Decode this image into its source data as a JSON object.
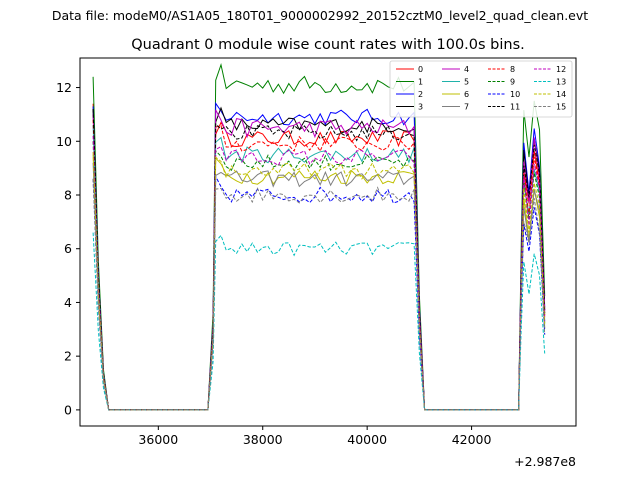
{
  "chart_data": {
    "type": "line",
    "suptitle": "Data file: modeM0/AS1A05_180T01_9000002992_20152cztM0_level2_quad_clean.evt",
    "title": "Quadrant 0 module wise count rates with 100.0s bins.",
    "xlabel": "",
    "ylabel": "",
    "x_offset_label": "+2.987e8",
    "xlim": [
      34500,
      44000
    ],
    "ylim": [
      -0.6,
      13.1
    ],
    "xticks": [
      36000,
      38000,
      40000,
      42000
    ],
    "xtick_labels": [
      "36000",
      "38000",
      "40000",
      "42000"
    ],
    "yticks": [
      0,
      2,
      4,
      6,
      8,
      10,
      12
    ],
    "ytick_labels": [
      "0",
      "2",
      "4",
      "6",
      "8",
      "10",
      "12"
    ],
    "grid": false,
    "legend_position": "top-right",
    "segments": [
      {
        "start": 34750,
        "end": 37000
      },
      {
        "start": 37100,
        "end": 41000
      },
      {
        "start": 42900,
        "end": 43400
      }
    ],
    "series": [
      {
        "name": "0",
        "color": "#ff0000",
        "dash": "solid",
        "level": 10.1,
        "jitter": 0.3,
        "start": 11.4
      },
      {
        "name": "1",
        "color": "#008000",
        "dash": "solid",
        "level": 12.1,
        "jitter": 0.35,
        "start": 12.4
      },
      {
        "name": "2",
        "color": "#0000ff",
        "dash": "solid",
        "level": 10.9,
        "jitter": 0.3,
        "start": 11.3
      },
      {
        "name": "3",
        "color": "#000000",
        "dash": "solid",
        "level": 10.6,
        "jitter": 0.3,
        "start": 11.2
      },
      {
        "name": "4",
        "color": "#bf00bf",
        "dash": "solid",
        "level": 10.5,
        "jitter": 0.35,
        "start": 11.0
      },
      {
        "name": "5",
        "color": "#20b2aa",
        "dash": "solid",
        "level": 9.5,
        "jitter": 0.3,
        "start": 10.6
      },
      {
        "name": "6",
        "color": "#bfbf00",
        "dash": "solid",
        "level": 8.7,
        "jitter": 0.3,
        "start": 9.5
      },
      {
        "name": "7",
        "color": "#808080",
        "dash": "solid",
        "level": 8.6,
        "jitter": 0.3,
        "start": 9.2
      },
      {
        "name": "8",
        "color": "#ff0000",
        "dash": "dashed",
        "level": 9.9,
        "jitter": 0.3,
        "start": 10.8
      },
      {
        "name": "9",
        "color": "#008000",
        "dash": "dashed",
        "level": 9.2,
        "jitter": 0.3,
        "start": 10.0
      },
      {
        "name": "10",
        "color": "#0000ff",
        "dash": "dashed",
        "level": 8.0,
        "jitter": 0.3,
        "start": 8.6
      },
      {
        "name": "11",
        "color": "#000000",
        "dash": "dashed",
        "level": 10.3,
        "jitter": 0.3,
        "start": 11.2
      },
      {
        "name": "12",
        "color": "#bf00bf",
        "dash": "dashed",
        "level": 9.4,
        "jitter": 0.3,
        "start": 10.2
      },
      {
        "name": "13",
        "color": "#00bfbf",
        "dash": "dashed",
        "level": 6.0,
        "jitter": 0.25,
        "start": 6.6
      },
      {
        "name": "14",
        "color": "#bfbf00",
        "dash": "dashed",
        "level": 8.9,
        "jitter": 0.3,
        "start": 9.6
      },
      {
        "name": "15",
        "color": "#808080",
        "dash": "dashed",
        "level": 8.0,
        "jitter": 0.3,
        "start": 8.6
      }
    ]
  }
}
